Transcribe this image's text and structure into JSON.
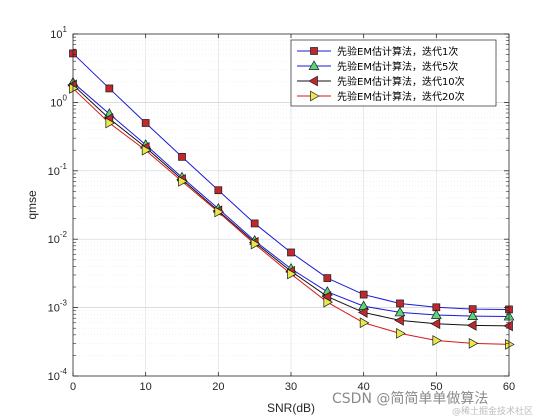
{
  "chart_data": {
    "type": "line",
    "xlabel": "SNR(dB)",
    "ylabel": "qmse",
    "xlim": [
      0,
      60
    ],
    "ylim": [
      0.0001,
      10
    ],
    "yscale": "log",
    "grid": true,
    "legend_position": "top-right",
    "x_ticks": [
      0,
      10,
      20,
      30,
      40,
      50,
      60
    ],
    "x": [
      0,
      5,
      10,
      15,
      20,
      25,
      30,
      35,
      40,
      45,
      50,
      55,
      60
    ],
    "series": [
      {
        "name": "先验EM估计算法，迭代1次",
        "color": "#1a1adb",
        "marker": "square",
        "marker_color": "#c0282d",
        "values": [
          5.2,
          1.6,
          0.5,
          0.16,
          0.052,
          0.017,
          0.0064,
          0.0027,
          0.00155,
          0.00115,
          0.00101,
          0.00095,
          0.00094
        ]
      },
      {
        "name": "先验EM估计算法，迭代5次",
        "color": "#1a1adb",
        "marker": "triangle-up",
        "marker_color": "#5bd47a",
        "values": [
          1.95,
          0.68,
          0.24,
          0.08,
          0.028,
          0.0095,
          0.0037,
          0.0017,
          0.00105,
          0.00085,
          0.00078,
          0.00075,
          0.00074
        ]
      },
      {
        "name": "先验EM估计算法，迭代10次",
        "color": "#111111",
        "marker": "triangle-left",
        "marker_color": "#c0282d",
        "values": [
          1.8,
          0.58,
          0.22,
          0.075,
          0.026,
          0.009,
          0.0034,
          0.00145,
          0.00085,
          0.00065,
          0.00058,
          0.00055,
          0.00054
        ]
      },
      {
        "name": "先验EM估计算法，迭代20次",
        "color": "#d61a1a",
        "marker": "triangle-right",
        "marker_color": "#e8e84a",
        "values": [
          1.6,
          0.5,
          0.2,
          0.07,
          0.025,
          0.0085,
          0.0031,
          0.0012,
          0.0006,
          0.00042,
          0.00033,
          0.0003,
          0.00029
        ]
      }
    ]
  },
  "watermark": {
    "main": "CSDN @简简单单做算法",
    "sub": "@稀土掘金技术社区"
  }
}
